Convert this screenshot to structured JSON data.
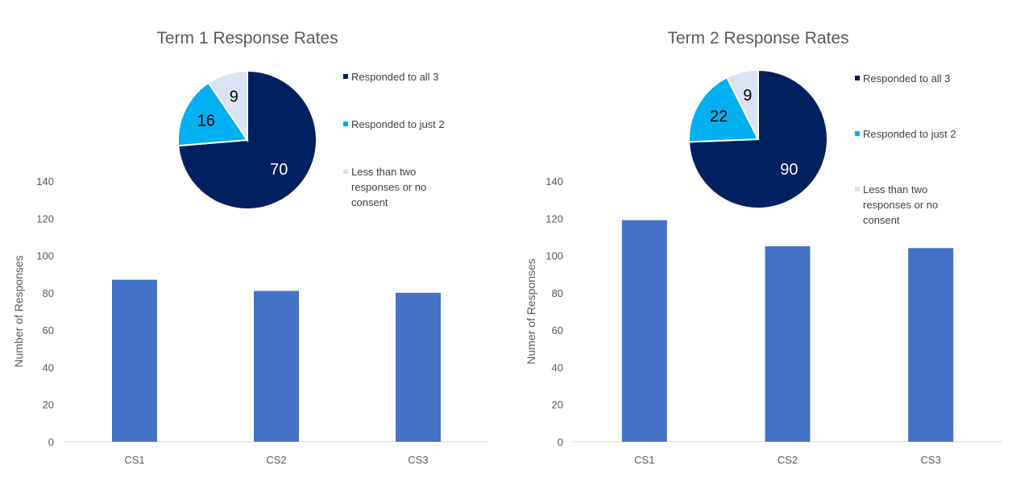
{
  "colors": {
    "bar": "#4472C4",
    "axis": "#D9D9D9",
    "pie_all3": "#002060",
    "pie_just2": "#00B0F0",
    "pie_less": "#DAE3F3"
  },
  "chart_data": [
    {
      "type": "bar",
      "title": "",
      "categories": [
        "CS1",
        "CS2",
        "CS3"
      ],
      "values": [
        87,
        81,
        80
      ],
      "xlabel": "",
      "ylabel": "Number of Responses",
      "ylim": [
        0,
        140
      ],
      "yticks": [
        0,
        20,
        40,
        60,
        80,
        100,
        120,
        140
      ],
      "grid": false
    },
    {
      "type": "pie",
      "title": "Term 1 Response Rates",
      "labels": [
        "Responded to all 3",
        "Responded to just 2",
        "Less than two responses or no consent"
      ],
      "values": [
        70,
        16,
        9
      ],
      "legend_position": "right"
    },
    {
      "type": "bar",
      "title": "",
      "categories": [
        "CS1",
        "CS2",
        "CS3"
      ],
      "values": [
        119,
        105,
        104
      ],
      "xlabel": "",
      "ylabel": "Numer of Responses",
      "ylim": [
        0,
        140
      ],
      "yticks": [
        0,
        20,
        40,
        60,
        80,
        100,
        120,
        140
      ],
      "grid": false
    },
    {
      "type": "pie",
      "title": "Term 2 Response Rates",
      "labels": [
        "Responded to all 3",
        "Responded to just 2",
        "Less than two responses or no consent"
      ],
      "values": [
        90,
        22,
        9
      ],
      "legend_position": "right"
    }
  ]
}
